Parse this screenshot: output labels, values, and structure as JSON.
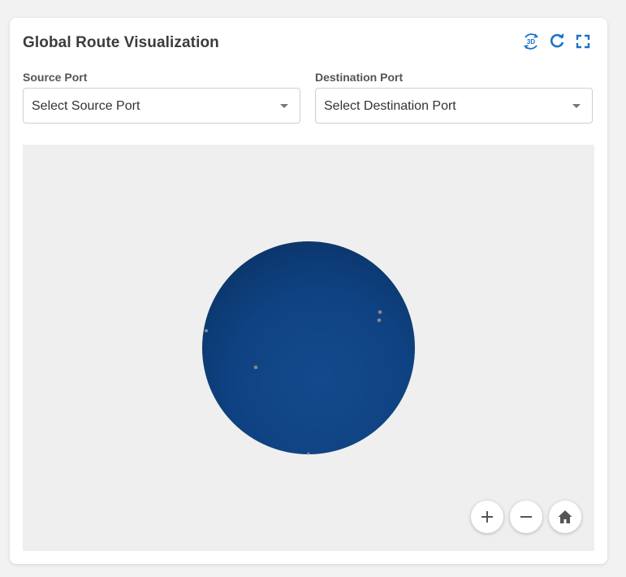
{
  "card": {
    "title": "Global Route Visualization"
  },
  "toolbar": {
    "icons": [
      "3d-view-icon",
      "refresh-icon",
      "fullscreen-icon"
    ]
  },
  "source": {
    "label": "Source Port",
    "value": "Select Source Port"
  },
  "destination": {
    "label": "Destination Port",
    "value": "Select Destination Port"
  },
  "map_controls": {
    "icons": [
      "zoom-in-icon",
      "zoom-out-icon",
      "home-icon"
    ]
  },
  "colors": {
    "accent": "#1a73c8",
    "globe": "#0f3f7c",
    "viewer_bg": "#efefef"
  }
}
